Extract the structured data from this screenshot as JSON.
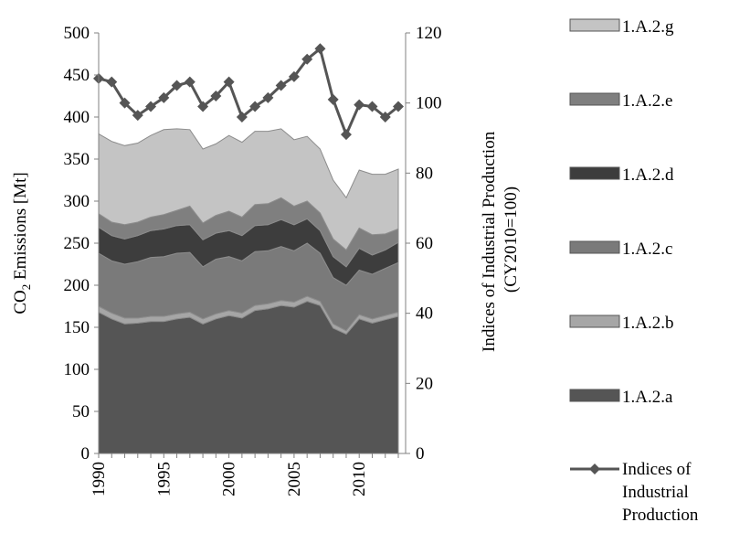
{
  "chart_data": {
    "type": "area",
    "x": [
      1990,
      1991,
      1992,
      1993,
      1994,
      1995,
      1996,
      1997,
      1998,
      1999,
      2000,
      2001,
      2002,
      2003,
      2004,
      2005,
      2006,
      2007,
      2008,
      2009,
      2010,
      2011,
      2012,
      2013
    ],
    "x_tick_labels": [
      "1990",
      "1995",
      "2000",
      "2005",
      "2010"
    ],
    "xlim": [
      1990,
      2013
    ],
    "ylabel_left": {
      "main": "CO",
      "sub": "2",
      "rest": " Emissions [Mt]"
    },
    "ylabel_right_lines": [
      "Indices of Industrial Production",
      "(CY2010=100)"
    ],
    "ylim_left": [
      0,
      500
    ],
    "ylim_right": [
      0,
      120
    ],
    "y_ticks_left": [
      "0",
      "50",
      "100",
      "150",
      "200",
      "250",
      "300",
      "350",
      "400",
      "450",
      "500"
    ],
    "y_ticks_right": [
      "0",
      "20",
      "40",
      "60",
      "80",
      "100",
      "120"
    ],
    "stacked_series": [
      {
        "name": "1.A.2.a",
        "color": "#555555",
        "values": [
          168,
          160,
          154,
          155,
          157,
          157,
          160,
          162,
          154,
          160,
          164,
          161,
          170,
          172,
          176,
          174,
          181,
          176,
          149,
          142,
          160,
          155,
          159,
          163
        ]
      },
      {
        "name": "1.A.2.b",
        "color": "#a6a6a6",
        "values": [
          7,
          7,
          7,
          6,
          6,
          6,
          6,
          6,
          6,
          6,
          6,
          6,
          6,
          6,
          6,
          6,
          6,
          5,
          5,
          4,
          5,
          5,
          5,
          5
        ]
      },
      {
        "name": "1.A.2.c",
        "color": "#7a7a7a",
        "values": [
          63,
          62,
          64,
          67,
          70,
          71,
          72,
          71,
          62,
          65,
          64,
          62,
          64,
          63,
          64,
          61,
          63,
          57,
          55,
          54,
          53,
          53,
          56,
          59
        ]
      },
      {
        "name": "1.A.2.d",
        "color": "#3d3d3d",
        "values": [
          31,
          30,
          30,
          31,
          32,
          33,
          33,
          33,
          32,
          31,
          31,
          30,
          31,
          31,
          32,
          31,
          29,
          27,
          25,
          22,
          26,
          23,
          22,
          24
        ]
      },
      {
        "name": "1.A.2.e",
        "color": "#7f7f7f",
        "values": [
          16,
          16,
          17,
          16,
          16,
          17,
          18,
          22,
          20,
          21,
          23,
          22,
          25,
          25,
          26,
          22,
          21,
          21,
          21,
          20,
          24,
          24,
          19,
          16
        ]
      },
      {
        "name": "1.A.2.g",
        "color": "#c4c4c4",
        "values": [
          95,
          96,
          94,
          94,
          97,
          101,
          97,
          91,
          88,
          85,
          90,
          89,
          87,
          86,
          82,
          79,
          77,
          76,
          70,
          62,
          69,
          72,
          71,
          71
        ]
      }
    ],
    "line_series": {
      "name_lines": [
        "Indices of",
        "Industrial",
        "Production"
      ],
      "color": "#555555",
      "values": [
        107,
        106,
        100,
        96.5,
        99,
        101.5,
        105,
        106,
        99,
        102,
        106,
        96,
        99,
        101.5,
        105,
        107.5,
        112.5,
        115.5,
        101,
        91,
        99.5,
        99,
        96,
        99
      ]
    }
  }
}
